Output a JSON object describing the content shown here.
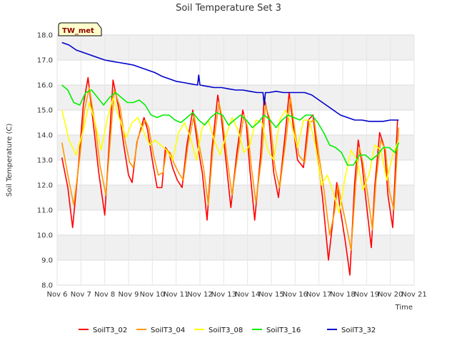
{
  "chart_data": {
    "type": "line",
    "title": "Soil Temperature Set 3",
    "xlabel": "Time",
    "ylabel": "Soil Temperature (C)",
    "badge": "TW_met",
    "ylim": [
      8.0,
      18.0
    ],
    "xlim": [
      6,
      21
    ],
    "y_ticks": [
      "8.0",
      "9.0",
      "10.0",
      "11.0",
      "12.0",
      "13.0",
      "14.0",
      "15.0",
      "16.0",
      "17.0",
      "18.0"
    ],
    "x_ticks": [
      "Nov 6",
      "Nov 7",
      "Nov 8",
      "Nov 9",
      "Nov 10",
      "Nov 11",
      "Nov 12",
      "Nov 13",
      "Nov 14",
      "Nov 15",
      "Nov 16",
      "Nov 17",
      "Nov 18",
      "Nov 19",
      "Nov 20",
      "Nov 21"
    ],
    "grid": true,
    "legend_position": "bottom",
    "series": [
      {
        "name": "SoilT3_02",
        "color": "#ff0000",
        "x": [
          6.2,
          6.45,
          6.65,
          6.9,
          7.1,
          7.3,
          7.55,
          7.75,
          8.0,
          8.15,
          8.35,
          8.6,
          8.8,
          9.0,
          9.15,
          9.35,
          9.65,
          9.8,
          10.0,
          10.2,
          10.4,
          10.55,
          10.7,
          10.85,
          11.05,
          11.25,
          11.45,
          11.7,
          11.9,
          12.1,
          12.3,
          12.5,
          12.75,
          12.9,
          13.1,
          13.3,
          13.55,
          13.8,
          13.95,
          14.1,
          14.3,
          14.55,
          14.7,
          14.9,
          15.1,
          15.3,
          15.6,
          15.75,
          15.95,
          16.1,
          16.35,
          16.55,
          16.75,
          16.95,
          17.15,
          17.4,
          17.6,
          17.75,
          17.9,
          18.1,
          18.3,
          18.5,
          18.65,
          18.8,
          19.0,
          19.2,
          19.35,
          19.55,
          19.75,
          19.9,
          20.1,
          20.3
        ],
        "y": [
          13.1,
          11.9,
          10.3,
          12.8,
          15.2,
          16.3,
          14.2,
          12.5,
          10.8,
          13.1,
          16.2,
          15.0,
          13.6,
          12.4,
          12.1,
          13.7,
          14.7,
          14.2,
          13.0,
          11.9,
          11.9,
          13.5,
          13.3,
          12.7,
          12.2,
          11.9,
          13.6,
          15.0,
          13.6,
          12.5,
          10.6,
          13.4,
          15.6,
          14.7,
          12.9,
          11.1,
          13.3,
          15.0,
          14.4,
          12.6,
          10.6,
          13.2,
          15.5,
          14.6,
          12.5,
          11.5,
          14.2,
          15.7,
          14.1,
          13.0,
          12.7,
          14.6,
          14.8,
          13.1,
          11.5,
          9.0,
          10.7,
          12.1,
          11.0,
          9.8,
          8.4,
          12.1,
          13.8,
          12.9,
          11.2,
          9.5,
          12.0,
          14.1,
          13.5,
          11.6,
          10.3,
          14.6
        ]
      },
      {
        "name": "SoilT3_04",
        "color": "#ff9900",
        "x": [
          6.2,
          6.45,
          6.7,
          6.95,
          7.15,
          7.35,
          7.6,
          7.8,
          8.05,
          8.2,
          8.4,
          8.65,
          8.85,
          9.05,
          9.2,
          9.4,
          9.7,
          9.85,
          10.05,
          10.25,
          10.45,
          10.6,
          10.75,
          10.9,
          11.1,
          11.3,
          11.5,
          11.75,
          11.95,
          12.15,
          12.35,
          12.55,
          12.8,
          12.95,
          13.15,
          13.35,
          13.6,
          13.85,
          14.0,
          14.15,
          14.35,
          14.6,
          14.75,
          14.95,
          15.15,
          15.35,
          15.65,
          15.8,
          16.0,
          16.15,
          16.4,
          16.6,
          16.8,
          17.0,
          17.2,
          17.45,
          17.65,
          17.8,
          17.95,
          18.15,
          18.35,
          18.55,
          18.7,
          18.85,
          19.05,
          19.25,
          19.4,
          19.6,
          19.8,
          19.95,
          20.15,
          20.35
        ],
        "y": [
          13.7,
          12.4,
          11.2,
          13.1,
          15.0,
          15.9,
          14.4,
          12.8,
          11.6,
          13.4,
          15.8,
          15.1,
          13.8,
          12.9,
          12.7,
          13.9,
          14.6,
          14.3,
          13.2,
          12.4,
          12.5,
          13.4,
          13.3,
          12.9,
          12.5,
          12.2,
          13.6,
          14.8,
          13.7,
          12.7,
          11.2,
          13.5,
          15.3,
          14.6,
          13.0,
          11.6,
          13.3,
          14.8,
          14.3,
          12.8,
          11.3,
          13.2,
          15.2,
          14.6,
          12.7,
          11.9,
          14.1,
          15.5,
          14.1,
          13.2,
          12.9,
          14.5,
          14.6,
          13.2,
          11.9,
          10.0,
          10.9,
          12.0,
          11.3,
          10.4,
          9.4,
          12.1,
          13.5,
          12.9,
          11.6,
          10.2,
          12.2,
          13.8,
          13.4,
          11.8,
          11.0,
          14.3
        ]
      },
      {
        "name": "SoilT3_08",
        "color": "#ffff00",
        "x": [
          6.2,
          6.5,
          6.8,
          7.1,
          7.35,
          7.6,
          7.85,
          8.1,
          8.35,
          8.6,
          8.9,
          9.15,
          9.4,
          9.7,
          9.9,
          10.1,
          10.35,
          10.6,
          10.85,
          11.1,
          11.35,
          11.6,
          11.85,
          12.1,
          12.35,
          12.6,
          12.85,
          13.1,
          13.35,
          13.6,
          13.85,
          14.1,
          14.35,
          14.6,
          14.85,
          15.1,
          15.35,
          15.6,
          15.85,
          16.1,
          16.35,
          16.6,
          16.85,
          17.1,
          17.35,
          17.6,
          17.85,
          18.1,
          18.35,
          18.6,
          18.85,
          19.1,
          19.35,
          19.6,
          19.85,
          20.1,
          20.35
        ],
        "y": [
          15.0,
          13.8,
          13.2,
          14.2,
          15.3,
          14.5,
          13.4,
          14.6,
          15.5,
          14.7,
          13.9,
          14.5,
          14.7,
          14.0,
          13.6,
          13.8,
          13.6,
          13.4,
          13.0,
          14.1,
          14.5,
          13.9,
          13.0,
          14.3,
          14.6,
          13.8,
          13.2,
          14.0,
          14.7,
          14.2,
          13.3,
          13.6,
          14.6,
          14.5,
          13.4,
          13.0,
          14.6,
          15.0,
          14.4,
          13.5,
          14.6,
          14.6,
          13.6,
          12.0,
          12.4,
          11.7,
          10.9,
          12.3,
          13.4,
          13.0,
          11.8,
          12.4,
          13.6,
          13.4,
          12.2,
          13.2,
          13.8
        ]
      },
      {
        "name": "SoilT3_16",
        "color": "#00ee00",
        "x": [
          6.2,
          6.45,
          6.7,
          6.95,
          7.2,
          7.45,
          7.7,
          7.95,
          8.2,
          8.45,
          8.7,
          8.95,
          9.2,
          9.45,
          9.7,
          9.95,
          10.2,
          10.45,
          10.7,
          10.95,
          11.2,
          11.45,
          11.7,
          11.95,
          12.2,
          12.45,
          12.7,
          12.95,
          13.2,
          13.45,
          13.7,
          13.95,
          14.2,
          14.45,
          14.7,
          14.95,
          15.2,
          15.45,
          15.7,
          15.95,
          16.2,
          16.45,
          16.7,
          16.95,
          17.2,
          17.45,
          17.7,
          17.95,
          18.2,
          18.45,
          18.7,
          18.95,
          19.2,
          19.45,
          19.7,
          19.95,
          20.2,
          20.35
        ],
        "y": [
          16.0,
          15.8,
          15.3,
          15.2,
          15.7,
          15.8,
          15.5,
          15.2,
          15.5,
          15.7,
          15.5,
          15.3,
          15.3,
          15.4,
          15.2,
          14.8,
          14.7,
          14.8,
          14.8,
          14.6,
          14.5,
          14.7,
          14.9,
          14.6,
          14.4,
          14.7,
          14.9,
          14.8,
          14.4,
          14.6,
          14.8,
          14.6,
          14.3,
          14.5,
          14.8,
          14.6,
          14.3,
          14.6,
          14.8,
          14.7,
          14.6,
          14.8,
          14.8,
          14.5,
          14.1,
          13.6,
          13.5,
          13.3,
          12.8,
          12.8,
          13.2,
          13.2,
          13.0,
          13.2,
          13.5,
          13.5,
          13.3,
          13.7
        ]
      },
      {
        "name": "SoilT3_32",
        "color": "#0000cc",
        "x": [
          6.2,
          6.5,
          6.8,
          7.1,
          7.4,
          7.7,
          8.0,
          8.3,
          8.6,
          8.9,
          9.2,
          9.5,
          9.8,
          10.1,
          10.4,
          10.7,
          11.0,
          11.3,
          11.6,
          11.9,
          11.95,
          12.0,
          12.3,
          12.6,
          12.9,
          13.2,
          13.5,
          13.8,
          14.1,
          14.4,
          14.65,
          14.7,
          14.75,
          14.9,
          15.2,
          15.5,
          15.8,
          16.1,
          16.4,
          16.7,
          17.0,
          17.3,
          17.6,
          17.9,
          18.2,
          18.5,
          18.8,
          19.1,
          19.4,
          19.7,
          20.0,
          20.35
        ],
        "y": [
          17.7,
          17.6,
          17.4,
          17.3,
          17.2,
          17.1,
          17.0,
          16.95,
          16.9,
          16.85,
          16.8,
          16.7,
          16.6,
          16.5,
          16.35,
          16.25,
          16.15,
          16.1,
          16.05,
          16.0,
          16.4,
          16.0,
          15.95,
          15.9,
          15.9,
          15.85,
          15.8,
          15.8,
          15.75,
          15.7,
          15.7,
          15.2,
          15.7,
          15.7,
          15.75,
          15.7,
          15.7,
          15.7,
          15.7,
          15.6,
          15.4,
          15.2,
          15.0,
          14.8,
          14.7,
          14.6,
          14.6,
          14.55,
          14.55,
          14.55,
          14.6,
          14.6
        ]
      }
    ]
  }
}
